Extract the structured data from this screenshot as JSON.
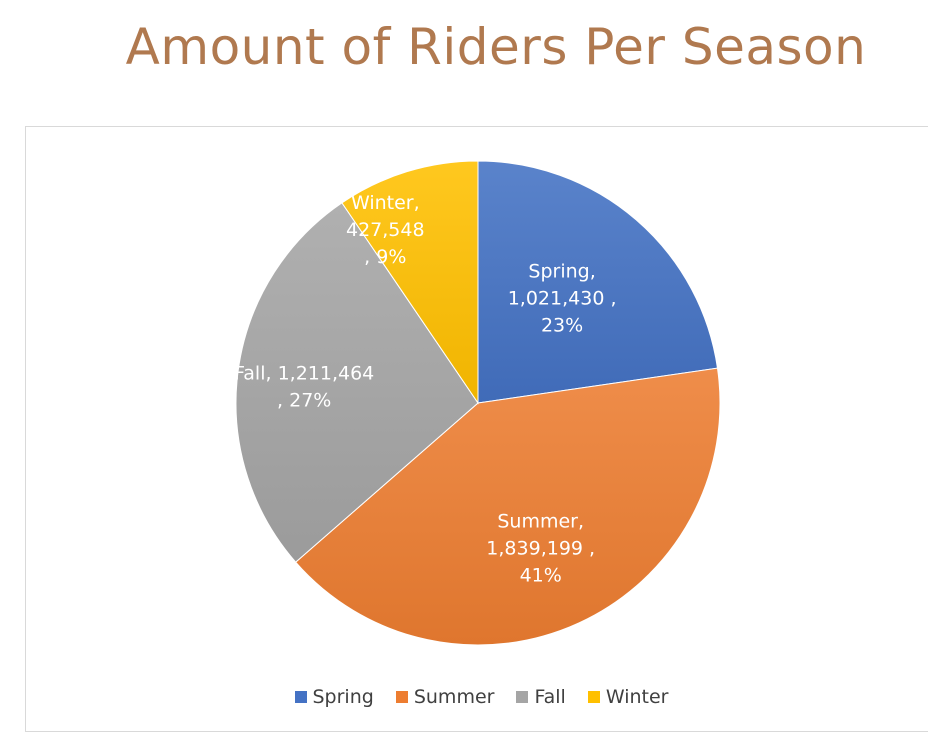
{
  "title": "Amount of Riders Per Season",
  "colors": {
    "title": "#B0794F",
    "Spring": "#4472C4",
    "Summer": "#ED7D31",
    "Fall": "#A5A5A5",
    "Winter": "#FFC000"
  },
  "chart_data": {
    "type": "pie",
    "title": "Amount of Riders Per Season",
    "categories": [
      "Spring",
      "Summer",
      "Fall",
      "Winter"
    ],
    "values": [
      1021430,
      1839199,
      1211464,
      427548
    ],
    "percent_labels": [
      "23%",
      "41%",
      "27%",
      "9%"
    ],
    "data_labels": [
      [
        "Spring,",
        "1,021,430 ,",
        "23%"
      ],
      [
        "Summer,",
        "1,839,199 ,",
        "41%"
      ],
      [
        "Fall,  1,211,464",
        ", 27%"
      ],
      [
        "Winter,",
        "427,548",
        ", 9%"
      ]
    ],
    "legend_position": "bottom",
    "start_angle": "12 o'clock",
    "direction": "clockwise"
  },
  "legend": {
    "items": [
      "Spring",
      "Summer",
      "Fall",
      "Winter"
    ]
  }
}
